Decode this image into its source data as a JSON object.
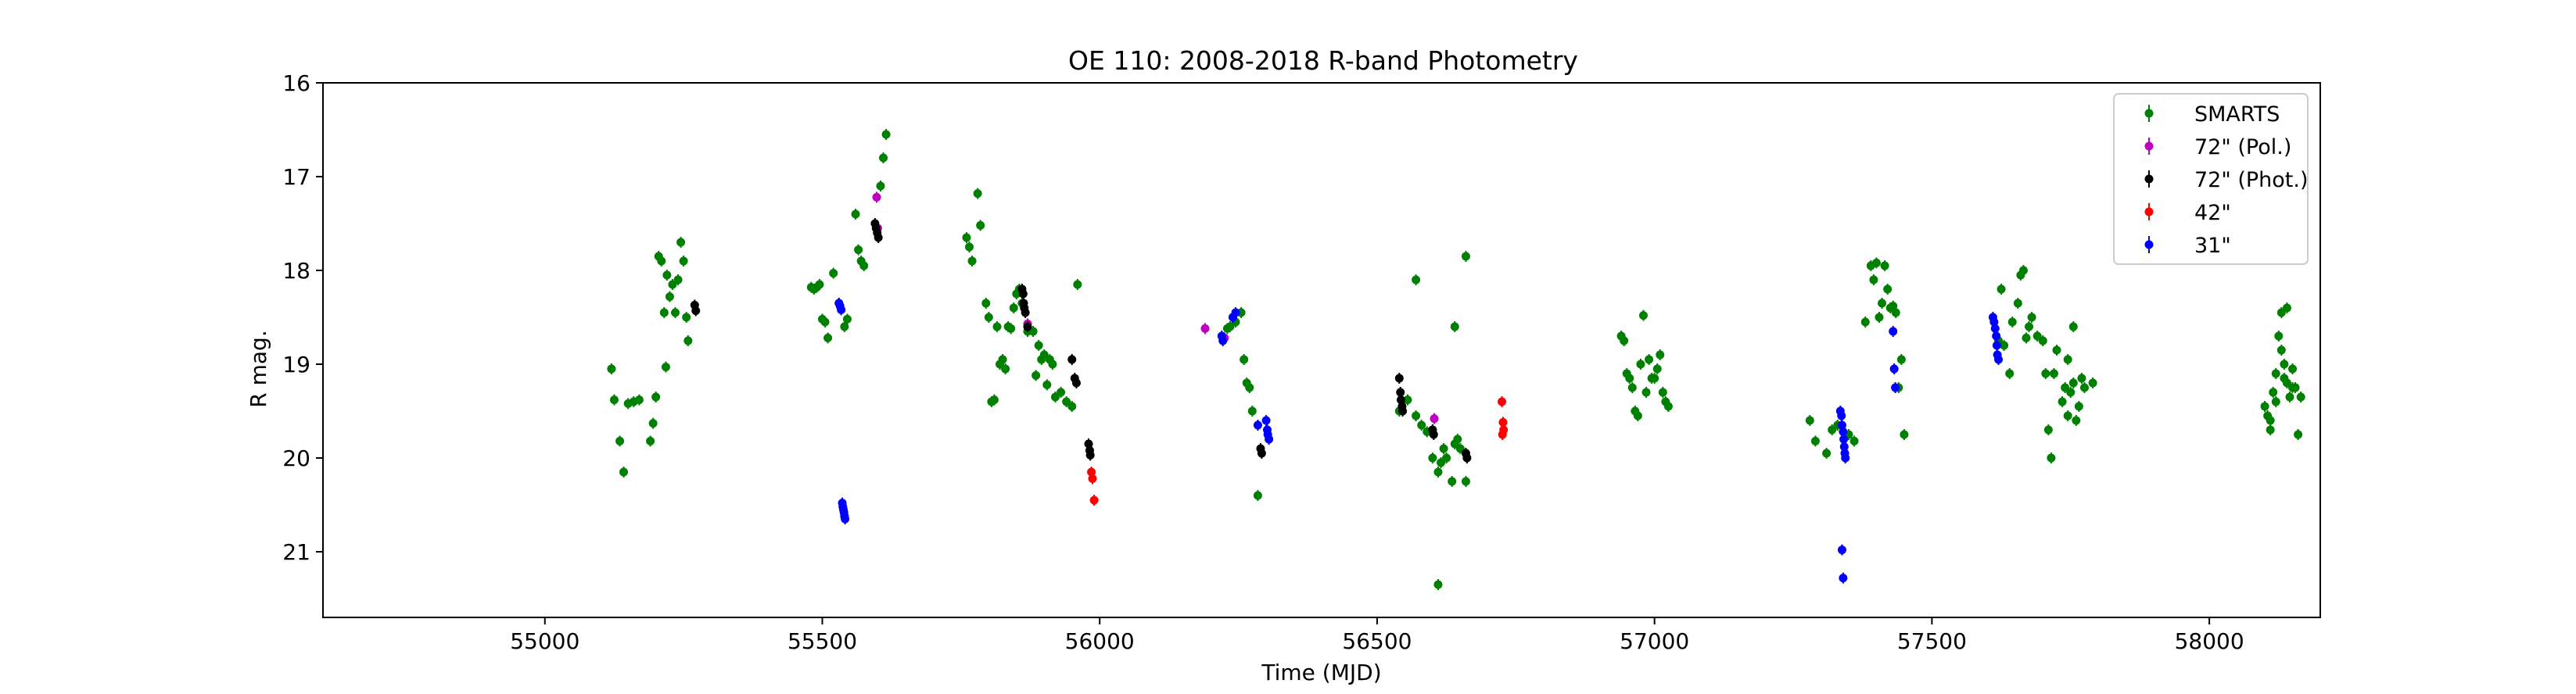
{
  "chart_data": {
    "type": "scatter",
    "title": "OE 110: 2008-2018 R-band Photometry",
    "xlabel": "Time (MJD)",
    "ylabel": "R mag.",
    "xlim": [
      54600,
      58200
    ],
    "ylim": [
      21.7,
      16.0
    ],
    "y_inverted": true,
    "xticks": [
      55000,
      55500,
      56000,
      56500,
      57000,
      57500,
      58000
    ],
    "yticks": [
      16,
      17,
      18,
      19,
      20,
      21
    ],
    "grid": false,
    "legend_position": "top-right",
    "series": [
      {
        "name": "SMARTS",
        "color": "#008000",
        "points": [
          [
            55120,
            19.05
          ],
          [
            55125,
            19.38
          ],
          [
            55135,
            19.82
          ],
          [
            55142,
            20.15
          ],
          [
            55150,
            19.42
          ],
          [
            55160,
            19.4
          ],
          [
            55170,
            19.38
          ],
          [
            55190,
            19.82
          ],
          [
            55195,
            19.63
          ],
          [
            55200,
            19.35
          ],
          [
            55205,
            17.85
          ],
          [
            55210,
            17.9
          ],
          [
            55215,
            18.45
          ],
          [
            55218,
            19.03
          ],
          [
            55220,
            18.05
          ],
          [
            55225,
            18.28
          ],
          [
            55230,
            18.15
          ],
          [
            55235,
            18.45
          ],
          [
            55240,
            18.1
          ],
          [
            55245,
            17.7
          ],
          [
            55250,
            17.9
          ],
          [
            55255,
            18.5
          ],
          [
            55258,
            18.75
          ],
          [
            55480,
            18.18
          ],
          [
            55485,
            18.2
          ],
          [
            55490,
            18.18
          ],
          [
            55495,
            18.15
          ],
          [
            55500,
            18.52
          ],
          [
            55505,
            18.55
          ],
          [
            55510,
            18.72
          ],
          [
            55520,
            18.03
          ],
          [
            55530,
            18.35
          ],
          [
            55540,
            18.6
          ],
          [
            55545,
            18.52
          ],
          [
            55560,
            17.4
          ],
          [
            55565,
            17.78
          ],
          [
            55570,
            17.9
          ],
          [
            55575,
            17.95
          ],
          [
            55605,
            17.1
          ],
          [
            55610,
            16.8
          ],
          [
            55615,
            16.55
          ],
          [
            55760,
            17.65
          ],
          [
            55765,
            17.75
          ],
          [
            55770,
            17.9
          ],
          [
            55780,
            17.18
          ],
          [
            55785,
            17.52
          ],
          [
            55795,
            18.35
          ],
          [
            55800,
            18.5
          ],
          [
            55805,
            19.4
          ],
          [
            55810,
            19.38
          ],
          [
            55815,
            18.6
          ],
          [
            55820,
            19.0
          ],
          [
            55825,
            18.95
          ],
          [
            55830,
            19.05
          ],
          [
            55835,
            18.6
          ],
          [
            55840,
            18.62
          ],
          [
            55845,
            18.4
          ],
          [
            55850,
            18.25
          ],
          [
            55855,
            18.2
          ],
          [
            55860,
            18.35
          ],
          [
            55870,
            18.65
          ],
          [
            55880,
            18.65
          ],
          [
            55885,
            19.12
          ],
          [
            55890,
            18.8
          ],
          [
            55895,
            18.95
          ],
          [
            55900,
            18.9
          ],
          [
            55905,
            19.22
          ],
          [
            55910,
            18.95
          ],
          [
            55915,
            19.0
          ],
          [
            55920,
            19.35
          ],
          [
            55930,
            19.3
          ],
          [
            55940,
            19.4
          ],
          [
            55950,
            19.45
          ],
          [
            55960,
            18.15
          ],
          [
            56230,
            18.62
          ],
          [
            56235,
            18.6
          ],
          [
            56240,
            18.5
          ],
          [
            56245,
            18.55
          ],
          [
            56255,
            18.45
          ],
          [
            56260,
            18.95
          ],
          [
            56265,
            19.2
          ],
          [
            56270,
            19.25
          ],
          [
            56275,
            19.5
          ],
          [
            56285,
            20.4
          ],
          [
            56540,
            19.5
          ],
          [
            56555,
            19.38
          ],
          [
            56570,
            19.55
          ],
          [
            56580,
            19.65
          ],
          [
            56590,
            19.72
          ],
          [
            56600,
            20.0
          ],
          [
            56610,
            20.15
          ],
          [
            56615,
            20.05
          ],
          [
            56625,
            20.0
          ],
          [
            56635,
            20.25
          ],
          [
            56640,
            19.85
          ],
          [
            56645,
            19.8
          ],
          [
            56650,
            19.9
          ],
          [
            56660,
            20.25
          ],
          [
            56570,
            18.1
          ],
          [
            56640,
            18.6
          ],
          [
            56660,
            17.85
          ],
          [
            56610,
            21.35
          ],
          [
            56600,
            19.7
          ],
          [
            56620,
            19.9
          ],
          [
            56940,
            18.7
          ],
          [
            56945,
            18.75
          ],
          [
            56950,
            19.1
          ],
          [
            56955,
            19.15
          ],
          [
            56960,
            19.25
          ],
          [
            56965,
            19.5
          ],
          [
            56970,
            19.55
          ],
          [
            56975,
            19.0
          ],
          [
            56980,
            18.48
          ],
          [
            56985,
            19.3
          ],
          [
            56990,
            18.95
          ],
          [
            56995,
            19.15
          ],
          [
            57000,
            19.15
          ],
          [
            57005,
            19.05
          ],
          [
            57010,
            18.9
          ],
          [
            57015,
            19.3
          ],
          [
            57020,
            19.4
          ],
          [
            57025,
            19.45
          ],
          [
            57280,
            19.6
          ],
          [
            57290,
            19.82
          ],
          [
            57310,
            19.95
          ],
          [
            57320,
            19.7
          ],
          [
            57330,
            19.65
          ],
          [
            57350,
            19.75
          ],
          [
            57360,
            19.82
          ],
          [
            57380,
            18.55
          ],
          [
            57390,
            17.95
          ],
          [
            57395,
            18.1
          ],
          [
            57400,
            17.92
          ],
          [
            57405,
            18.5
          ],
          [
            57410,
            18.35
          ],
          [
            57415,
            17.95
          ],
          [
            57420,
            18.2
          ],
          [
            57425,
            18.4
          ],
          [
            57430,
            18.38
          ],
          [
            57435,
            18.45
          ],
          [
            57440,
            19.25
          ],
          [
            57445,
            18.95
          ],
          [
            57450,
            19.75
          ],
          [
            57620,
            18.75
          ],
          [
            57625,
            18.2
          ],
          [
            57630,
            18.8
          ],
          [
            57640,
            19.1
          ],
          [
            57645,
            18.55
          ],
          [
            57655,
            18.35
          ],
          [
            57660,
            18.05
          ],
          [
            57665,
            18.0
          ],
          [
            57670,
            18.72
          ],
          [
            57675,
            18.6
          ],
          [
            57680,
            18.5
          ],
          [
            57690,
            18.7
          ],
          [
            57700,
            18.75
          ],
          [
            57705,
            19.1
          ],
          [
            57710,
            19.7
          ],
          [
            57715,
            20.0
          ],
          [
            57720,
            19.1
          ],
          [
            57725,
            18.85
          ],
          [
            57735,
            19.4
          ],
          [
            57740,
            19.25
          ],
          [
            57745,
            18.95
          ],
          [
            57750,
            19.3
          ],
          [
            57755,
            19.2
          ],
          [
            57760,
            19.6
          ],
          [
            57765,
            19.45
          ],
          [
            57770,
            19.15
          ],
          [
            57775,
            19.25
          ],
          [
            57790,
            19.2
          ],
          [
            57755,
            18.6
          ],
          [
            57745,
            19.55
          ],
          [
            58100,
            19.45
          ],
          [
            58105,
            19.55
          ],
          [
            58110,
            19.7
          ],
          [
            58115,
            19.3
          ],
          [
            58120,
            19.1
          ],
          [
            58125,
            18.7
          ],
          [
            58130,
            18.45
          ],
          [
            58135,
            19.0
          ],
          [
            58140,
            19.2
          ],
          [
            58145,
            19.35
          ],
          [
            58150,
            19.05
          ],
          [
            58155,
            19.25
          ],
          [
            58160,
            19.75
          ],
          [
            58165,
            19.35
          ],
          [
            58110,
            19.6
          ],
          [
            58120,
            19.4
          ],
          [
            58130,
            18.85
          ],
          [
            58135,
            19.15
          ],
          [
            58140,
            18.4
          ],
          [
            58150,
            19.25
          ]
        ]
      },
      {
        "name": "72\" (Pol.)",
        "color": "#bf00bf",
        "points": [
          [
            55598,
            17.22
          ],
          [
            55600,
            17.55
          ],
          [
            55870,
            18.57
          ],
          [
            56190,
            18.62
          ],
          [
            56225,
            18.72
          ],
          [
            56603,
            19.58
          ]
        ]
      },
      {
        "name": "72\" (Phot.)",
        "color": "#000000",
        "points": [
          [
            55270,
            18.37
          ],
          [
            55272,
            18.43
          ],
          [
            55595,
            17.5
          ],
          [
            55597,
            17.55
          ],
          [
            55599,
            17.6
          ],
          [
            55601,
            17.65
          ],
          [
            55860,
            18.2
          ],
          [
            55862,
            18.25
          ],
          [
            55863,
            18.35
          ],
          [
            55864,
            18.4
          ],
          [
            55866,
            18.45
          ],
          [
            55870,
            18.6
          ],
          [
            55950,
            18.95
          ],
          [
            55955,
            19.15
          ],
          [
            55958,
            19.2
          ],
          [
            55980,
            19.85
          ],
          [
            55982,
            19.92
          ],
          [
            55983,
            19.97
          ],
          [
            56290,
            19.9
          ],
          [
            56292,
            19.95
          ],
          [
            56540,
            19.15
          ],
          [
            56542,
            19.3
          ],
          [
            56543,
            19.38
          ],
          [
            56545,
            19.45
          ],
          [
            56546,
            19.5
          ],
          [
            56600,
            19.7
          ],
          [
            56602,
            19.75
          ],
          [
            56660,
            19.95
          ],
          [
            56662,
            20.0
          ]
        ]
      },
      {
        "name": "42\"",
        "color": "#ff0000",
        "points": [
          [
            55985,
            20.15
          ],
          [
            55987,
            20.22
          ],
          [
            55990,
            20.45
          ],
          [
            56725,
            19.4
          ],
          [
            56727,
            19.62
          ],
          [
            56728,
            19.7
          ],
          [
            56726,
            19.75
          ]
        ]
      },
      {
        "name": "31\"",
        "color": "#0000ff",
        "points": [
          [
            55530,
            18.35
          ],
          [
            55532,
            18.38
          ],
          [
            55534,
            18.42
          ],
          [
            55536,
            20.48
          ],
          [
            55537,
            20.52
          ],
          [
            55538,
            20.55
          ],
          [
            55539,
            20.58
          ],
          [
            55540,
            20.62
          ],
          [
            55541,
            20.65
          ],
          [
            56220,
            18.7
          ],
          [
            56222,
            18.75
          ],
          [
            56240,
            18.5
          ],
          [
            56245,
            18.45
          ],
          [
            56285,
            19.65
          ],
          [
            56300,
            19.6
          ],
          [
            56302,
            19.7
          ],
          [
            56303,
            19.75
          ],
          [
            56305,
            19.8
          ],
          [
            57335,
            19.5
          ],
          [
            57337,
            19.55
          ],
          [
            57338,
            19.65
          ],
          [
            57340,
            19.72
          ],
          [
            57341,
            19.8
          ],
          [
            57342,
            19.88
          ],
          [
            57343,
            19.95
          ],
          [
            57344,
            20.0
          ],
          [
            57338,
            20.98
          ],
          [
            57340,
            21.28
          ],
          [
            57430,
            18.65
          ],
          [
            57432,
            19.05
          ],
          [
            57434,
            19.25
          ],
          [
            57610,
            18.5
          ],
          [
            57612,
            18.55
          ],
          [
            57614,
            18.62
          ],
          [
            57616,
            18.7
          ],
          [
            57617,
            18.8
          ],
          [
            57618,
            18.9
          ],
          [
            57620,
            18.95
          ]
        ]
      }
    ]
  }
}
